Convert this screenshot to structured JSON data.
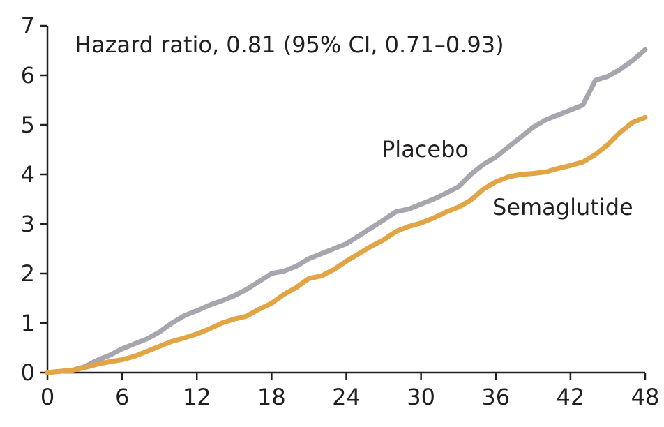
{
  "chart_data": {
    "type": "line",
    "title": "",
    "xlabel": "",
    "ylabel": "",
    "xlim": [
      0,
      48
    ],
    "ylim": [
      0,
      7
    ],
    "x_ticks": [
      0,
      6,
      12,
      18,
      24,
      30,
      36,
      42,
      48
    ],
    "y_ticks": [
      0,
      1,
      2,
      3,
      4,
      5,
      6,
      7
    ],
    "grid": false,
    "annotations": {
      "hazard_ratio": "Hazard ratio, 0.81 (95% CI, 0.71–0.93)"
    },
    "series": [
      {
        "name": "Placebo",
        "color": "#a7a6ae",
        "x": [
          0,
          2,
          3,
          4,
          5,
          6,
          7,
          8,
          9,
          10,
          11,
          12,
          13,
          14,
          15,
          16,
          17,
          18,
          19,
          20,
          21,
          22,
          23,
          24,
          25,
          26,
          27,
          28,
          29,
          30,
          31,
          32,
          33,
          34,
          35,
          36,
          37,
          38,
          39,
          40,
          41,
          42,
          43,
          44,
          45,
          46,
          47,
          48
        ],
        "values": [
          0,
          0.05,
          0.12,
          0.25,
          0.35,
          0.48,
          0.58,
          0.68,
          0.82,
          1.0,
          1.15,
          1.25,
          1.36,
          1.45,
          1.55,
          1.68,
          1.84,
          2.0,
          2.05,
          2.15,
          2.3,
          2.4,
          2.5,
          2.6,
          2.76,
          2.92,
          3.08,
          3.25,
          3.3,
          3.4,
          3.5,
          3.62,
          3.75,
          4.0,
          4.2,
          4.35,
          4.55,
          4.75,
          4.95,
          5.1,
          5.2,
          5.3,
          5.4,
          5.9,
          5.98,
          6.12,
          6.3,
          6.52
        ]
      },
      {
        "name": "Semaglutide",
        "color": "#e2a545",
        "x": [
          0,
          2,
          3,
          4,
          5,
          6,
          7,
          8,
          9,
          10,
          11,
          12,
          13,
          14,
          15,
          16,
          17,
          18,
          19,
          20,
          21,
          22,
          23,
          24,
          25,
          26,
          27,
          28,
          29,
          30,
          31,
          32,
          33,
          34,
          35,
          36,
          37,
          38,
          39,
          40,
          41,
          42,
          43,
          44,
          45,
          46,
          47,
          48
        ],
        "values": [
          0,
          0.05,
          0.1,
          0.17,
          0.22,
          0.26,
          0.33,
          0.43,
          0.53,
          0.63,
          0.7,
          0.78,
          0.88,
          1.0,
          1.08,
          1.14,
          1.28,
          1.4,
          1.58,
          1.72,
          1.9,
          1.95,
          2.08,
          2.25,
          2.4,
          2.55,
          2.68,
          2.85,
          2.95,
          3.02,
          3.12,
          3.24,
          3.34,
          3.48,
          3.7,
          3.85,
          3.95,
          4.0,
          4.02,
          4.05,
          4.12,
          4.18,
          4.25,
          4.4,
          4.6,
          4.85,
          5.05,
          5.15
        ]
      }
    ]
  }
}
